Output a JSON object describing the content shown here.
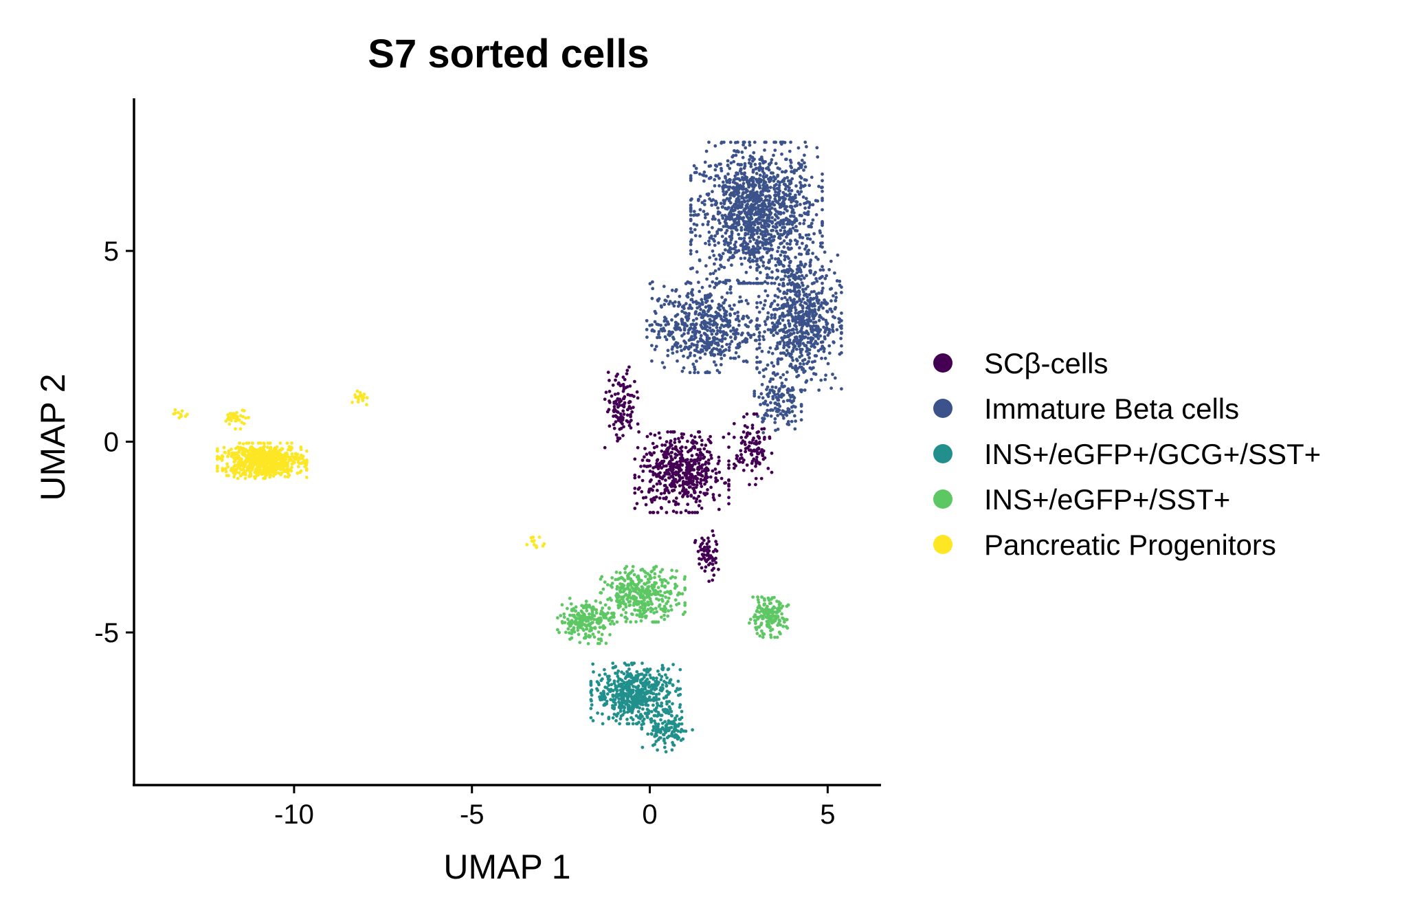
{
  "chart_data": {
    "type": "scatter",
    "title": "S7 sorted cells",
    "xlabel": "UMAP 1",
    "ylabel": "UMAP 2",
    "xlim": [
      -14.5,
      6.5
    ],
    "ylim": [
      -9,
      9
    ],
    "xticks": [
      -10,
      -5,
      0,
      5
    ],
    "yticks": [
      -5,
      0,
      5
    ],
    "grid": false,
    "legend_position": "right",
    "series": [
      {
        "name": "SCβ-cells",
        "color": "#440154"
      },
      {
        "name": "Immature Beta cells",
        "color": "#3B528B"
      },
      {
        "name": "INS+/eGFP+/GCG+/SST+",
        "color": "#21908C"
      },
      {
        "name": "INS+/eGFP+/SST+",
        "color": "#5DC863"
      },
      {
        "name": "Pancreatic Progenitors",
        "color": "#FDE725"
      }
    ],
    "clusters": [
      {
        "series": 1,
        "cx": 3.0,
        "cy": 6.0,
        "sx": 1.4,
        "sy": 1.4,
        "n": 1300
      },
      {
        "series": 1,
        "cx": 4.2,
        "cy": 3.2,
        "sx": 0.9,
        "sy": 1.4,
        "n": 700
      },
      {
        "series": 1,
        "cx": 1.5,
        "cy": 3.0,
        "sx": 1.2,
        "sy": 0.9,
        "n": 550
      },
      {
        "series": 1,
        "cx": 3.6,
        "cy": 1.0,
        "sx": 0.5,
        "sy": 0.6,
        "n": 120
      },
      {
        "series": 0,
        "cx": 0.9,
        "cy": -0.8,
        "sx": 1.0,
        "sy": 0.8,
        "n": 520
      },
      {
        "series": 0,
        "cx": -0.8,
        "cy": 0.9,
        "sx": 0.35,
        "sy": 0.8,
        "n": 120
      },
      {
        "series": 0,
        "cx": 2.9,
        "cy": -0.2,
        "sx": 0.4,
        "sy": 0.7,
        "n": 110
      },
      {
        "series": 0,
        "cx": 1.6,
        "cy": -3.0,
        "sx": 0.25,
        "sy": 0.5,
        "n": 70
      },
      {
        "series": 3,
        "cx": -0.2,
        "cy": -4.0,
        "sx": 0.9,
        "sy": 0.55,
        "n": 360
      },
      {
        "series": 3,
        "cx": -1.8,
        "cy": -4.7,
        "sx": 0.6,
        "sy": 0.45,
        "n": 200
      },
      {
        "series": 3,
        "cx": 3.3,
        "cy": -4.6,
        "sx": 0.45,
        "sy": 0.4,
        "n": 160
      },
      {
        "series": 2,
        "cx": -0.4,
        "cy": -6.6,
        "sx": 0.95,
        "sy": 0.6,
        "n": 550
      },
      {
        "series": 2,
        "cx": 0.5,
        "cy": -7.6,
        "sx": 0.55,
        "sy": 0.4,
        "n": 120
      },
      {
        "series": 4,
        "cx": -10.9,
        "cy": -0.5,
        "sx": 0.95,
        "sy": 0.35,
        "n": 700
      },
      {
        "series": 4,
        "cx": -11.6,
        "cy": 0.6,
        "sx": 0.25,
        "sy": 0.2,
        "n": 40
      },
      {
        "series": 4,
        "cx": -8.1,
        "cy": 1.2,
        "sx": 0.2,
        "sy": 0.2,
        "n": 18
      },
      {
        "series": 4,
        "cx": -13.2,
        "cy": 0.7,
        "sx": 0.15,
        "sy": 0.1,
        "n": 10
      },
      {
        "series": 4,
        "cx": -3.2,
        "cy": -2.7,
        "sx": 0.2,
        "sy": 0.15,
        "n": 12
      }
    ]
  }
}
